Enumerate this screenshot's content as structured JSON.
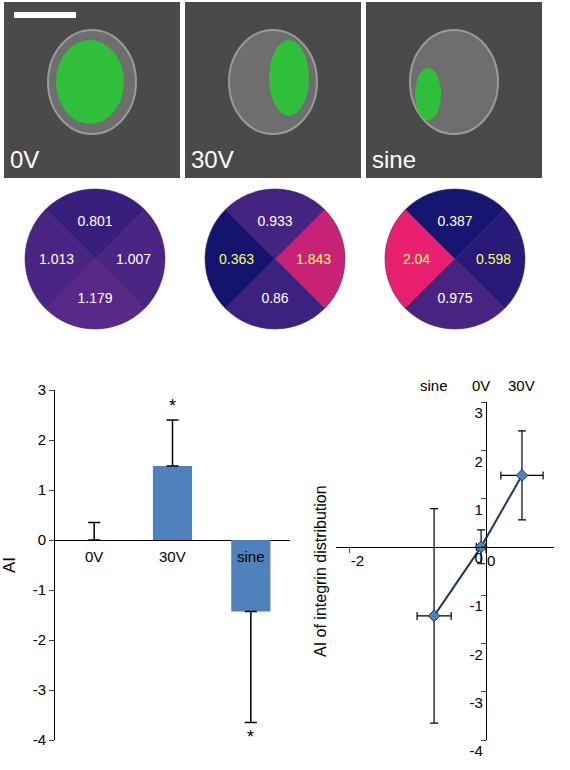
{
  "micrographs": [
    "0V",
    "30V",
    "sine"
  ],
  "quadrant_maps": [
    {
      "values": [
        0.801,
        1.013,
        1.007,
        1.179
      ],
      "label_colors": [
        "#ffffff",
        "#ffffff",
        "#ffffff",
        "#ffffff"
      ]
    },
    {
      "values": [
        0.933,
        0.363,
        1.843,
        0.86
      ],
      "label_colors": [
        "#ffffff",
        "#ffff66",
        "#ffff66",
        "#ffffff"
      ]
    },
    {
      "values": [
        0.387,
        2.04,
        0.598,
        0.975
      ],
      "label_colors": [
        "#ffffff",
        "#ffff66",
        "#ffff66",
        "#ffffff"
      ]
    }
  ],
  "chart_data": [
    {
      "type": "bar",
      "categories": [
        "0V",
        "30V",
        "sine"
      ],
      "values": [
        0,
        1.48,
        -1.43
      ],
      "error_plus": [
        0.35,
        0.92,
        0
      ],
      "error_minus": [
        0,
        0,
        2.22
      ],
      "significance": [
        null,
        "*",
        "*"
      ],
      "color": "#4f81bd",
      "y_label": "AI",
      "ylim": [
        -4,
        3
      ],
      "yticks": [
        -4,
        -3,
        -2,
        -1,
        0,
        1,
        2,
        3
      ],
      "grid": false
    },
    {
      "type": "line",
      "labels": [
        "sine",
        "0V",
        "30V"
      ],
      "x": [
        -0.76,
        -0.07,
        0.53
      ],
      "values": [
        -1.43,
        0,
        1.48
      ],
      "x_errors": [
        0.25,
        0.07,
        0.31
      ],
      "y_errors": [
        2.22,
        0.35,
        0.92
      ],
      "y_label": "AI of integrin distribution",
      "xlim": [
        -2.2,
        1
      ],
      "xticks": [
        -2,
        0
      ],
      "ylim": [
        -4,
        3
      ],
      "yticks": [
        -4,
        -3,
        -2,
        -1,
        0,
        1,
        2,
        3
      ],
      "color": "#1f3864",
      "marker": "diamond",
      "grid": false
    }
  ]
}
